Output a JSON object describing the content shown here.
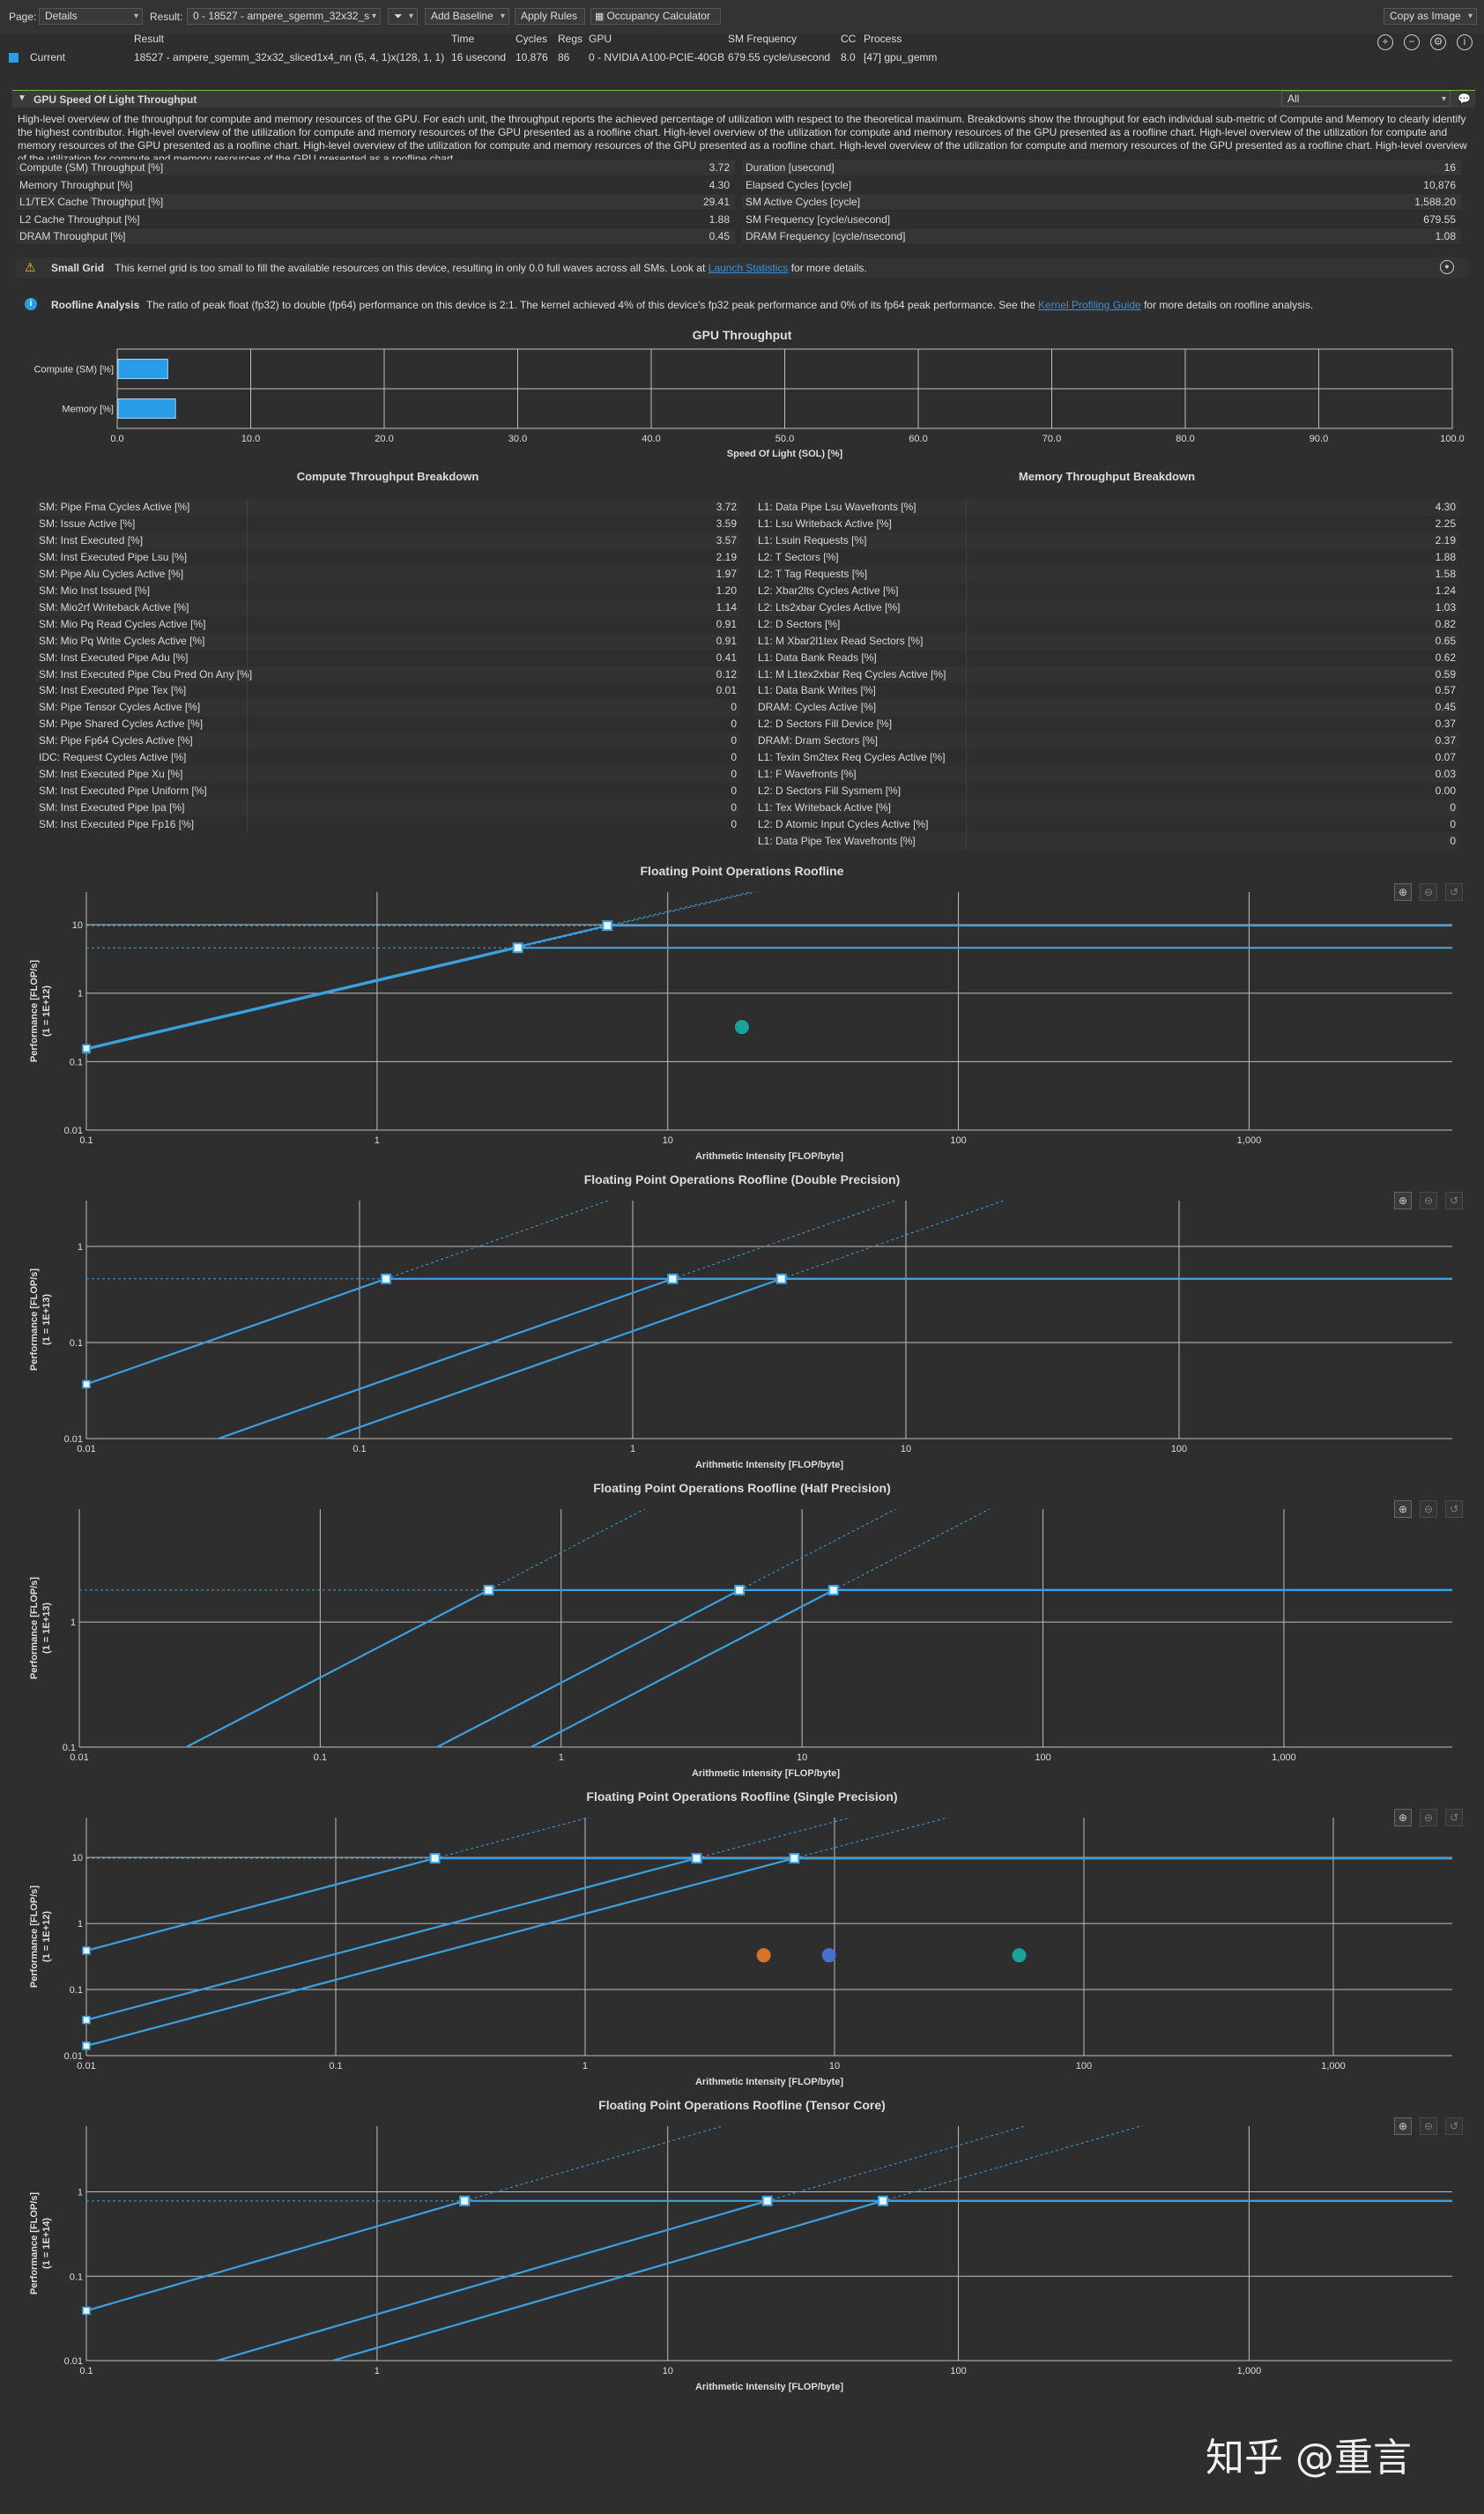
{
  "toolbar": {
    "page_label": "Page:",
    "page_value": "Details",
    "result_label": "Result:",
    "result_value": "0 - 18527 - ampere_sgemm_32x32_s",
    "add_baseline": "Add Baseline",
    "apply_rules": "Apply Rules",
    "occupancy_calculator": "Occupancy Calculator",
    "copy_as_image": "Copy as Image"
  },
  "result_header": {
    "columns": [
      "Result",
      "Time",
      "Cycles",
      "Regs",
      "GPU",
      "SM Frequency",
      "CC",
      "Process"
    ],
    "current_label": "Current",
    "values": [
      "18527 - ampere_sgemm_32x32_sliced1x4_nn (5, 4, 1)x(128, 1, 1)",
      "16 usecond",
      "10,876",
      "86",
      "0 - NVIDIA A100-PCIE-40GB",
      "679.55 cycle/usecond",
      "8.0",
      "[47] gpu_gemm"
    ]
  },
  "section": {
    "title": "GPU Speed Of Light Throughput",
    "filter": "All",
    "description": "High-level overview of the throughput for compute and memory resources of the GPU. For each unit, the throughput reports the achieved percentage of utilization with respect to the theoretical maximum. Breakdowns show the throughput for each individual sub-metric of Compute and Memory to clearly identify the highest contributor. High-level overview of the utilization for compute and memory resources of the GPU presented as a roofline chart. High-level overview of the utilization for compute and memory resources of the GPU presented as a roofline chart. High-level overview of the utilization for compute and memory resources of the GPU presented as a roofline chart. High-level overview of the utilization for compute and memory resources of the GPU presented as a roofline chart. High-level overview of the utilization for compute and memory resources of the GPU presented as a roofline chart. High-level overview of the utilization for compute and memory resources of the GPU presented as a roofline chart."
  },
  "metrics_left": [
    {
      "name": "Compute (SM) Throughput [%]",
      "value": "3.72"
    },
    {
      "name": "Memory Throughput [%]",
      "value": "4.30"
    },
    {
      "name": "L1/TEX Cache Throughput [%]",
      "value": "29.41"
    },
    {
      "name": "L2 Cache Throughput [%]",
      "value": "1.88"
    },
    {
      "name": "DRAM Throughput [%]",
      "value": "0.45"
    }
  ],
  "metrics_right": [
    {
      "name": "Duration [usecond]",
      "value": "16"
    },
    {
      "name": "Elapsed Cycles [cycle]",
      "value": "10,876"
    },
    {
      "name": "SM Active Cycles [cycle]",
      "value": "1,588.20"
    },
    {
      "name": "SM Frequency [cycle/usecond]",
      "value": "679.55"
    },
    {
      "name": "DRAM Frequency [cycle/nsecond]",
      "value": "1.08"
    }
  ],
  "warning": {
    "title": "Small Grid",
    "text_before": "This kernel grid is too small to fill the available resources on this device, resulting in only 0.0 full waves across all SMs. Look at",
    "link": "Launch Statistics",
    "text_after": "for more details."
  },
  "info": {
    "title": "Roofline Analysis",
    "text_before": "The ratio of peak float (fp32) to double (fp64) performance on this device is 2:1. The kernel achieved 4% of this device's fp32 peak performance and 0% of its fp64 peak performance. See the",
    "link": "Kernel Profiling Guide",
    "text_after": "for more details on roofline analysis."
  },
  "chart_data": [
    {
      "type": "bar",
      "title": "GPU Throughput",
      "categories": [
        "Compute (SM) [%]",
        "Memory [%]"
      ],
      "values": [
        3.72,
        4.3
      ],
      "xlabel": "Speed Of Light (SOL) [%]",
      "xlim": [
        0,
        100
      ],
      "xticks": [
        "0.0",
        "10.0",
        "20.0",
        "30.0",
        "40.0",
        "50.0",
        "60.0",
        "70.0",
        "80.0",
        "90.0",
        "100.0"
      ],
      "color": "#2a9de8"
    },
    {
      "type": "line",
      "title": "Floating Point Operations Roofline",
      "xlabel": "Arithmetic Intensity [FLOP/byte]",
      "ylabel": "Performance [FLOP/s]",
      "yunit": "(1 = 1E+12)",
      "xlim": [
        0.1,
        5000
      ],
      "ylim": [
        0.01,
        30
      ],
      "xticks": [
        "0.1",
        "1",
        "10",
        "100",
        "1,000"
      ],
      "yticks": [
        "0.01",
        "0.1",
        "1",
        "10"
      ],
      "ridge_points": [
        {
          "x": 3.05,
          "y": 4.6
        },
        {
          "x": 6.2,
          "y": 9.7
        }
      ],
      "achieved": [
        {
          "x": 18,
          "y": 0.32,
          "color": "#1aa39b"
        }
      ]
    },
    {
      "type": "line",
      "title": "Floating Point Operations Roofline (Double Precision)",
      "xlabel": "Arithmetic Intensity [FLOP/byte]",
      "ylabel": "Performance [FLOP/s]",
      "yunit": "(1 = 1E+13)",
      "xlim": [
        0.01,
        1000
      ],
      "ylim": [
        0.01,
        3
      ],
      "xticks": [
        "0.01",
        "0.1",
        "1",
        "10",
        "100"
      ],
      "yticks": [
        "0.01",
        "0.1",
        "1"
      ],
      "ridge_points": [
        {
          "x": 0.125,
          "y": 0.46
        },
        {
          "x": 1.4,
          "y": 0.46
        },
        {
          "x": 3.5,
          "y": 0.46
        }
      ],
      "achieved": []
    },
    {
      "type": "line",
      "title": "Floating Point Operations Roofline (Half Precision)",
      "xlabel": "Arithmetic Intensity [FLOP/byte]",
      "ylabel": "Performance [FLOP/s]",
      "yunit": "(1 = 1E+13)",
      "xlim": [
        0.01,
        5000
      ],
      "ylim": [
        0.1,
        8
      ],
      "xticks": [
        "0.01",
        "0.1",
        "1",
        "10",
        "100",
        "1,000"
      ],
      "yticks": [
        "0.1",
        "1"
      ],
      "ridge_points": [
        {
          "x": 0.5,
          "y": 1.8
        },
        {
          "x": 5.5,
          "y": 1.8
        },
        {
          "x": 13.5,
          "y": 1.8
        }
      ],
      "achieved": []
    },
    {
      "type": "line",
      "title": "Floating Point Operations Roofline (Single Precision)",
      "xlabel": "Arithmetic Intensity [FLOP/byte]",
      "ylabel": "Performance [FLOP/s]",
      "yunit": "(1 = 1E+12)",
      "xlim": [
        0.01,
        3000
      ],
      "ylim": [
        0.01,
        40
      ],
      "xticks": [
        "0.01",
        "0.1",
        "1",
        "10",
        "100",
        "1,000"
      ],
      "yticks": [
        "0.01",
        "0.1",
        "1",
        "10"
      ],
      "ridge_points": [
        {
          "x": 0.25,
          "y": 9.7
        },
        {
          "x": 2.8,
          "y": 9.7
        },
        {
          "x": 6.9,
          "y": 9.7
        }
      ],
      "achieved": [
        {
          "x": 5.2,
          "y": 0.33,
          "color": "#d9722a"
        },
        {
          "x": 9.5,
          "y": 0.33,
          "color": "#4a6fd0"
        },
        {
          "x": 55,
          "y": 0.33,
          "color": "#1aa39b"
        }
      ]
    },
    {
      "type": "line",
      "title": "Floating Point Operations Roofline (Tensor Core)",
      "xlabel": "Arithmetic Intensity [FLOP/byte]",
      "ylabel": "Performance [FLOP/s]",
      "yunit": "(1 = 1E+14)",
      "xlim": [
        0.1,
        5000
      ],
      "ylim": [
        0.01,
        6
      ],
      "xticks": [
        "0.1",
        "1",
        "10",
        "100",
        "1,000"
      ],
      "yticks": [
        "0.01",
        "0.1",
        "1"
      ],
      "ridge_points": [
        {
          "x": 2.0,
          "y": 0.78
        },
        {
          "x": 22,
          "y": 0.78
        },
        {
          "x": 55,
          "y": 0.78
        }
      ],
      "achieved": []
    }
  ],
  "compute_breakdown": {
    "title": "Compute Throughput Breakdown",
    "rows": [
      {
        "name": "SM: Pipe Fma Cycles Active [%]",
        "value": "3.72"
      },
      {
        "name": "SM: Issue Active [%]",
        "value": "3.59"
      },
      {
        "name": "SM: Inst Executed [%]",
        "value": "3.57"
      },
      {
        "name": "SM: Inst Executed Pipe Lsu [%]",
        "value": "2.19"
      },
      {
        "name": "SM: Pipe Alu Cycles Active [%]",
        "value": "1.97"
      },
      {
        "name": "SM: Mio Inst Issued [%]",
        "value": "1.20"
      },
      {
        "name": "SM: Mio2rf Writeback Active [%]",
        "value": "1.14"
      },
      {
        "name": "SM: Mio Pq Read Cycles Active [%]",
        "value": "0.91"
      },
      {
        "name": "SM: Mio Pq Write Cycles Active [%]",
        "value": "0.91"
      },
      {
        "name": "SM: Inst Executed Pipe Adu [%]",
        "value": "0.41"
      },
      {
        "name": "SM: Inst Executed Pipe Cbu Pred On Any [%]",
        "value": "0.12"
      },
      {
        "name": "SM: Inst Executed Pipe Tex [%]",
        "value": "0.01"
      },
      {
        "name": "SM: Pipe Tensor Cycles Active [%]",
        "value": "0"
      },
      {
        "name": "SM: Pipe Shared Cycles Active [%]",
        "value": "0"
      },
      {
        "name": "SM: Pipe Fp64 Cycles Active [%]",
        "value": "0"
      },
      {
        "name": "IDC: Request Cycles Active [%]",
        "value": "0"
      },
      {
        "name": "SM: Inst Executed Pipe Xu [%]",
        "value": "0"
      },
      {
        "name": "SM: Inst Executed Pipe Uniform [%]",
        "value": "0"
      },
      {
        "name": "SM: Inst Executed Pipe Ipa [%]",
        "value": "0"
      },
      {
        "name": "SM: Inst Executed Pipe Fp16 [%]",
        "value": "0"
      }
    ]
  },
  "memory_breakdown": {
    "title": "Memory Throughput Breakdown",
    "rows": [
      {
        "name": "L1: Data Pipe Lsu Wavefronts [%]",
        "value": "4.30"
      },
      {
        "name": "L1: Lsu Writeback Active [%]",
        "value": "2.25"
      },
      {
        "name": "L1: Lsuin Requests [%]",
        "value": "2.19"
      },
      {
        "name": "L2: T Sectors [%]",
        "value": "1.88"
      },
      {
        "name": "L2: T Tag Requests [%]",
        "value": "1.58"
      },
      {
        "name": "L2: Xbar2lts Cycles Active [%]",
        "value": "1.24"
      },
      {
        "name": "L2: Lts2xbar Cycles Active [%]",
        "value": "1.03"
      },
      {
        "name": "L2: D Sectors [%]",
        "value": "0.82"
      },
      {
        "name": "L1: M Xbar2l1tex Read Sectors [%]",
        "value": "0.65"
      },
      {
        "name": "L1: Data Bank Reads [%]",
        "value": "0.62"
      },
      {
        "name": "L1: M L1tex2xbar Req Cycles Active [%]",
        "value": "0.59"
      },
      {
        "name": "L1: Data Bank Writes [%]",
        "value": "0.57"
      },
      {
        "name": "DRAM: Cycles Active [%]",
        "value": "0.45"
      },
      {
        "name": "L2: D Sectors Fill Device [%]",
        "value": "0.37"
      },
      {
        "name": "DRAM: Dram Sectors [%]",
        "value": "0.37"
      },
      {
        "name": "L1: Texin Sm2tex Req Cycles Active [%]",
        "value": "0.07"
      },
      {
        "name": "L1: F Wavefronts [%]",
        "value": "0.03"
      },
      {
        "name": "L2: D Sectors Fill Sysmem [%]",
        "value": "0.00"
      },
      {
        "name": "L1: Tex Writeback Active [%]",
        "value": "0"
      },
      {
        "name": "L2: D Atomic Input Cycles Active [%]",
        "value": "0"
      },
      {
        "name": "L1: Data Pipe Tex Wavefronts [%]",
        "value": "0"
      }
    ]
  },
  "watermark": "知乎 @重言",
  "colors": {
    "accent": "#2a9de8",
    "roof": "#3aa0e0",
    "background": "#2e2e2e",
    "grid": "#bdbdbd"
  },
  "icons": [
    "filter-icon",
    "calculator-icon",
    "zoom-in-icon",
    "zoom-out-icon",
    "reset-zoom-icon",
    "help-icon",
    "comment-icon",
    "warning-icon",
    "info-icon"
  ]
}
